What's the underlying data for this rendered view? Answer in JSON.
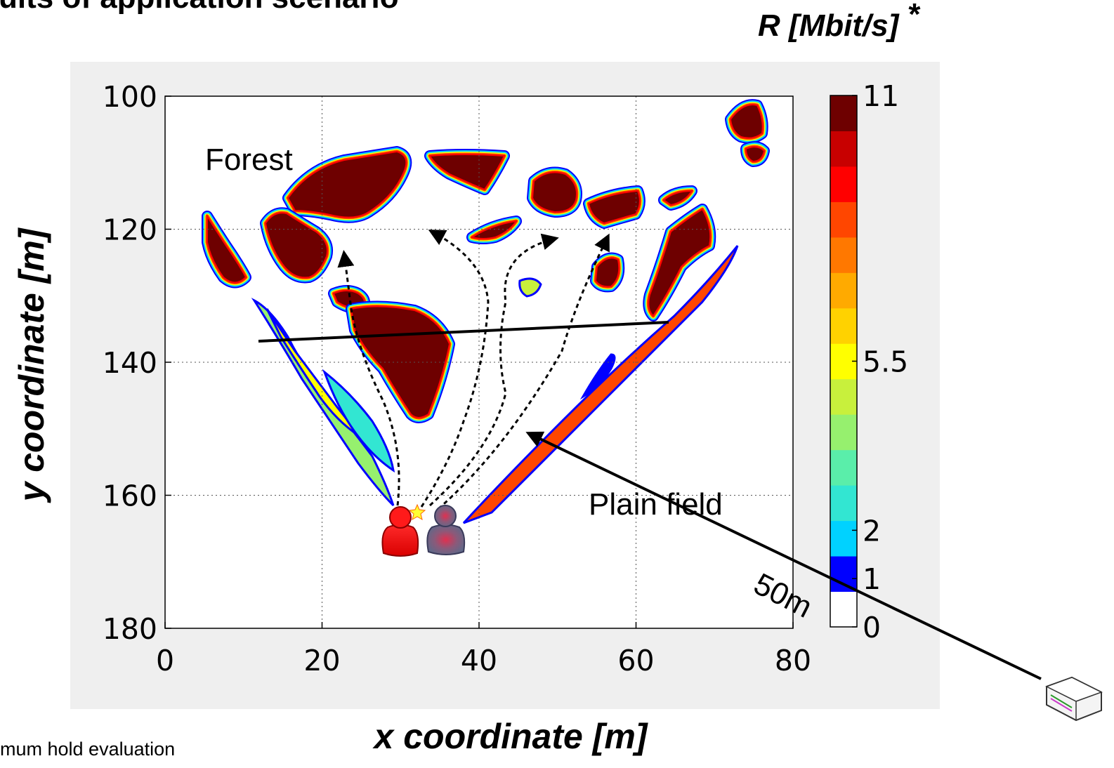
{
  "slide": {
    "title": "ults of application scenario",
    "footnote": "mum hold evaluation"
  },
  "chart_data": {
    "type": "heatmap",
    "title": "",
    "xlabel": "x coordinate [m]",
    "ylabel": "y coordinate [m]",
    "xlim": [
      0,
      80
    ],
    "ylim": [
      180,
      100
    ],
    "y_reversed": true,
    "x_ticks": [
      "0",
      "20",
      "40",
      "60",
      "80"
    ],
    "y_ticks": [
      "100",
      "120",
      "140",
      "160",
      "180"
    ],
    "grid": true,
    "colorbar": {
      "title": "R [Mbit/s]",
      "title_mark": "*",
      "range": [
        0,
        11
      ],
      "tick_labels": [
        "0",
        "1",
        "2",
        "5.5",
        "11"
      ],
      "tick_values": [
        0,
        1,
        2,
        5.5,
        11
      ],
      "colors": [
        "#ffffff",
        "#0000ff",
        "#00d2ff",
        "#32e6d2",
        "#5aeeaa",
        "#96f06e",
        "#c8f03c",
        "#ffff00",
        "#ffd200",
        "#ffaa00",
        "#ff7800",
        "#ff4600",
        "#ff0000",
        "#c80000",
        "#6e0000"
      ]
    },
    "annotations": [
      "Forest",
      "Plain field",
      "50m"
    ],
    "colors": {
      "max_region": "#6e0000",
      "plot_background": "#ffffff",
      "figure_background": "#efefef",
      "person_red": "#ff0000",
      "person_gray": "#6a6a8a"
    }
  }
}
